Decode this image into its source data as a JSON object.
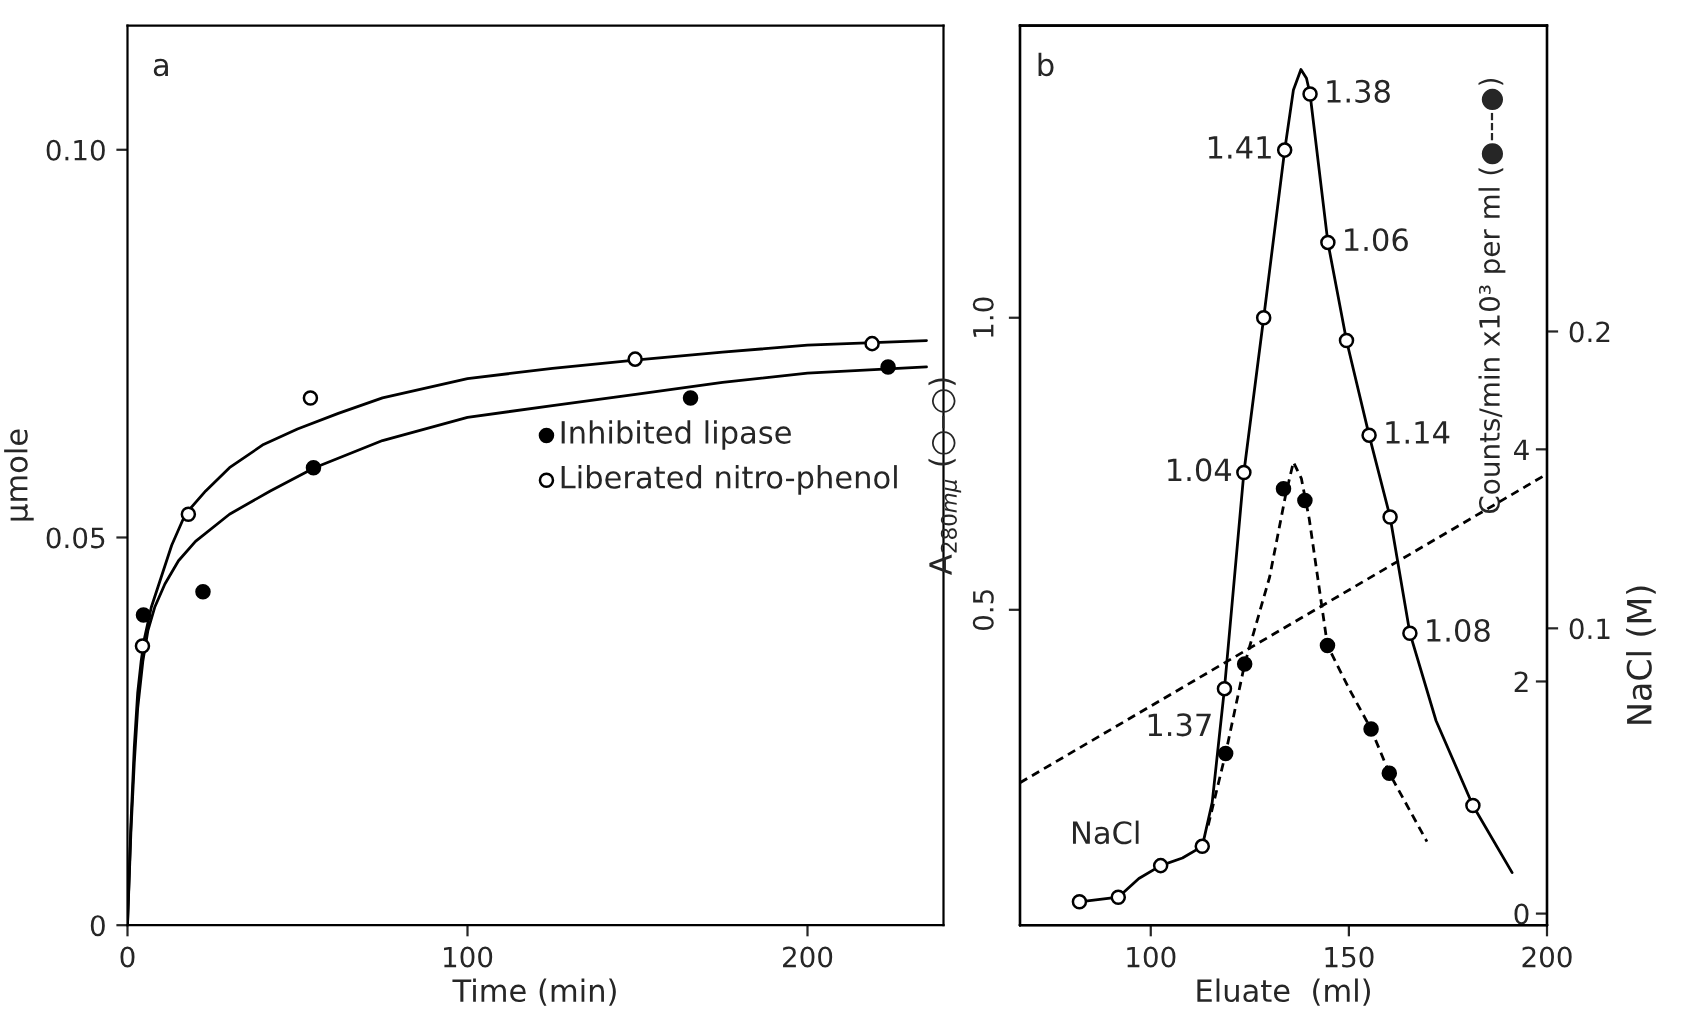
{
  "chart_data": [
    {
      "type": "scatter",
      "xlabel": "Time (min)",
      "ylabel": "μmole",
      "annotations": [
        "a"
      ],
      "xlim": [
        0,
        240
      ],
      "ylim": [
        0,
        0.116
      ],
      "xticks": [
        0,
        100,
        200
      ],
      "yticks": [
        0,
        0.05,
        {
          "value": 0.1,
          "label": "0.10"
        }
      ],
      "legend": "center right",
      "series": [
        {
          "name": "Inhibited lipase",
          "marker": "circle",
          "color": "#000000",
          "x": [
            4.7,
            22.2,
            54.7,
            165.6,
            223.7
          ],
          "values": [
            0.04,
            0.043,
            0.059,
            0.068,
            0.072
          ]
        },
        {
          "name": "Liberated nitro-phenol",
          "marker": "circle",
          "color": "#ffffff",
          "x": [
            4.4,
            17.9,
            53.8,
            149.3,
            219
          ],
          "values": [
            0.036,
            0.053,
            0.068,
            0.073,
            0.075
          ]
        },
        {
          "type": "line",
          "color": "#000000",
          "line_style": "solid",
          "x": [
            0,
            1,
            2,
            3,
            4.5,
            6,
            8,
            11,
            15,
            20,
            30,
            42,
            55,
            75,
            100,
            125,
            150,
            175,
            200,
            235
          ],
          "values": [
            0,
            0.012,
            0.021,
            0.028,
            0.034,
            0.038,
            0.041,
            0.044,
            0.047,
            0.0495,
            0.053,
            0.056,
            0.059,
            0.0625,
            0.0655,
            0.067,
            0.0685,
            0.07,
            0.0712,
            0.072
          ]
        },
        {
          "type": "line",
          "color": "#000000",
          "line_style": "solid",
          "x": [
            0,
            1,
            2,
            3,
            4,
            5,
            7,
            10,
            13,
            17,
            23,
            30,
            40,
            50,
            62,
            75,
            100,
            125,
            150,
            175,
            200,
            235
          ],
          "values": [
            0,
            0.013,
            0.023,
            0.03,
            0.034,
            0.037,
            0.041,
            0.045,
            0.049,
            0.053,
            0.056,
            0.059,
            0.062,
            0.064,
            0.066,
            0.068,
            0.0705,
            0.0718,
            0.0729,
            0.0739,
            0.0748,
            0.0754
          ]
        }
      ]
    },
    {
      "type": "scatter",
      "xlabel": "Eluate  (ml)",
      "ylabel": "A$_{280mμ}$ (○–○)",
      "y2label": "Counts/min x10³ per ml (●---●)",
      "y3label": "NaCl (M)",
      "xlim": [
        67,
        200
      ],
      "ylim": [
        -0.04,
        1.5
      ],
      "y2lim": [
        -0.1,
        7.65
      ],
      "y3lim": [
        0,
        0.303
      ],
      "xticks": [
        100,
        150,
        200
      ],
      "yticks": [
        {
          "value": 0.5,
          "label": "0.5"
        },
        {
          "value": 1,
          "label": "1.0"
        }
      ],
      "y2ticks": [
        0,
        2,
        4
      ],
      "y3ticks": [
        0.1,
        0.2
      ],
      "annotations": [
        "b",
        {
          "text": "1.37",
          "x": 118.6,
          "y": 0.365
        },
        {
          "text": "1.04",
          "x": 123.5,
          "y": 0.735
        },
        {
          "text": "1.41",
          "x": 133.8,
          "y": 1.287
        },
        {
          "text": "1.38",
          "x": 140.2,
          "y": 1.383
        },
        {
          "text": "1.06",
          "x": 144.7,
          "y": 1.129
        },
        {
          "text": "1.14",
          "x": 155.1,
          "y": 0.799
        },
        {
          "text": "1.08",
          "x": 165.4,
          "y": 0.46
        }
      ],
      "series": [
        {
          "type": "line",
          "color": "#000000",
          "line_style": "solid",
          "x": [
            82,
            91.8,
            97,
            102.5,
            108,
            113,
            115.5,
            118.6,
            123.5,
            128.5,
            133.8,
            136,
            137.9,
            139.3,
            140.2,
            144.7,
            149.4,
            155.1,
            160.4,
            165.4,
            172,
            181.3,
            191.2
          ],
          "values": [
            0,
            0.008,
            0.04,
            0.062,
            0.075,
            0.095,
            0.17,
            0.365,
            0.735,
            1.0,
            1.287,
            1.39,
            1.425,
            1.41,
            1.383,
            1.129,
            0.961,
            0.799,
            0.659,
            0.46,
            0.31,
            0.165,
            0.05
          ]
        },
        {
          "marker": "circle",
          "color": "#ffffff",
          "x": [
            82,
            91.8,
            102.5,
            113,
            118.6,
            123.5,
            128.5,
            133.8,
            140.2,
            144.7,
            149.4,
            155.1,
            160.4,
            165.4,
            181.3
          ],
          "values": [
            0,
            0.008,
            0.062,
            0.095,
            0.365,
            0.735,
            1.0,
            1.287,
            1.383,
            1.129,
            0.961,
            0.799,
            0.659,
            0.46,
            0.165
          ]
        },
        {
          "type": "line",
          "axis": "y2",
          "color": "#000000",
          "line_style": "dashed",
          "x": [
            114.5,
            118.9,
            123.7,
            130,
            134,
            136,
            138,
            140,
            144.6,
            150,
            155.6,
            160.2,
            169.7
          ],
          "values": [
            0.76,
            1.38,
            2.15,
            2.9,
            3.6,
            3.89,
            3.75,
            3.4,
            2.31,
            1.94,
            1.59,
            1.21,
            0.62
          ]
        },
        {
          "marker": "circle",
          "axis": "y2",
          "color": "#000000",
          "x": [
            118.9,
            123.7,
            133.5,
            138.9,
            144.6,
            155.6,
            160.2
          ],
          "values": [
            1.38,
            2.15,
            3.66,
            3.56,
            2.31,
            1.59,
            1.21
          ]
        },
        {
          "name": "NaCl",
          "type": "line",
          "axis": "y3",
          "color": "#000000",
          "line_style": "dashed",
          "x": [
            67,
            200
          ],
          "values": [
            0.048,
            0.152
          ]
        }
      ]
    }
  ]
}
